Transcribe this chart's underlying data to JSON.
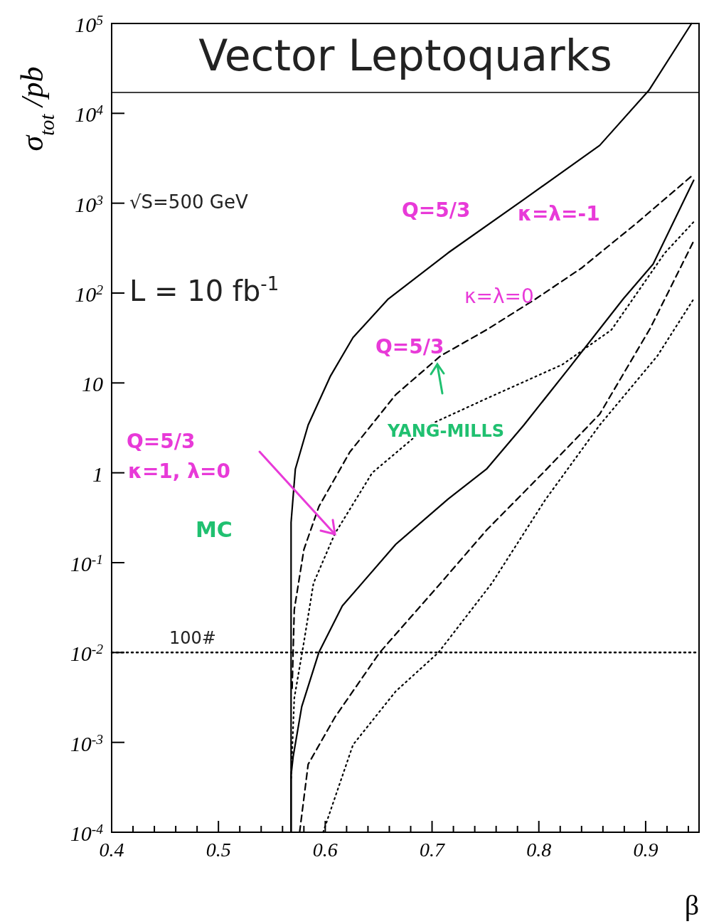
{
  "chart_data": {
    "type": "line",
    "title": "Vector Leptoquarks",
    "xlabel": "β",
    "ylabel": "σ$_{tot}$ /pb",
    "log": "y",
    "xlim": [
      0.4,
      0.95
    ],
    "ylim": [
      0.0001,
      100000
    ],
    "xticks": [
      0.4,
      {
        "value": 0.42,
        "label": null
      },
      {
        "value": 0.44,
        "label": null
      },
      {
        "value": 0.46,
        "label": null
      },
      {
        "value": 0.48,
        "label": null
      },
      0.5,
      {
        "value": 0.52,
        "label": null
      },
      {
        "value": 0.54,
        "label": null
      },
      {
        "value": 0.56,
        "label": null
      },
      {
        "value": 0.58,
        "label": null
      },
      0.6,
      {
        "value": 0.62,
        "label": null
      },
      {
        "value": 0.64,
        "label": null
      },
      {
        "value": 0.66,
        "label": null
      },
      {
        "value": 0.68,
        "label": null
      },
      0.7,
      {
        "value": 0.72,
        "label": null
      },
      {
        "value": 0.74,
        "label": null
      },
      {
        "value": 0.76,
        "label": null
      },
      {
        "value": 0.78,
        "label": null
      },
      0.8,
      {
        "value": 0.82,
        "label": null
      },
      {
        "value": 0.84,
        "label": null
      },
      {
        "value": 0.86,
        "label": null
      },
      {
        "value": 0.88,
        "label": null
      },
      0.9,
      {
        "value": 0.92,
        "label": null
      },
      {
        "value": 0.94,
        "label": null
      }
    ],
    "yticks": [
      {
        "value": 0.0001,
        "label": "10$^{-4}$"
      },
      {
        "value": 0.001,
        "label": "10$^{-3}$"
      },
      {
        "value": 0.01,
        "label": "10$^{-2}$"
      },
      {
        "value": 0.1,
        "label": "10$^{-1}$"
      },
      1,
      10,
      {
        "value": 100,
        "label": "10$^{2}$"
      },
      {
        "value": 1000,
        "label": "10$^{3}$"
      },
      {
        "value": 10000,
        "label": "10$^{4}$"
      },
      {
        "value": 100000,
        "label": "10$^{5}$"
      }
    ],
    "series": [
      {
        "color": "#000000",
        "line_style": "solid",
        "x": [
          0.568,
          0.568,
          0.572,
          0.584,
          0.605,
          0.626,
          0.659,
          0.715,
          0.786,
          0.857,
          0.903,
          0.943
        ],
        "values": [
          0.0001,
          0.28,
          1.1,
          3.4,
          12,
          32,
          86,
          280,
          1100,
          4400,
          18000,
          100000
        ]
      },
      {
        "color": "#000000",
        "line_style": "dashed",
        "x": [
          0.569,
          0.571,
          0.58,
          0.594,
          0.623,
          0.666,
          0.708,
          0.751,
          0.797,
          0.84,
          0.893,
          0.945
        ],
        "values": [
          0.004,
          0.03,
          0.14,
          0.42,
          1.7,
          7.4,
          20,
          39,
          86,
          190,
          620,
          2100
        ]
      },
      {
        "color": "#000000",
        "line_style": "dotted",
        "x": [
          0.568,
          0.571,
          0.58,
          0.589,
          0.609,
          0.644,
          0.697,
          0.751,
          0.822,
          0.868,
          0.918,
          0.945
        ],
        "values": [
          0.0004,
          0.0031,
          0.013,
          0.059,
          0.21,
          1.0,
          3.4,
          6.7,
          16,
          39,
          280,
          620
        ]
      },
      {
        "color": "#000000",
        "line_style": "solid",
        "x": [
          0.568,
          0.568,
          0.57,
          0.578,
          0.594,
          0.616,
          0.666,
          0.715,
          0.751,
          0.786,
          0.829,
          0.879,
          0.907,
          0.945
        ],
        "values": [
          0.0001,
          0.00043,
          0.0007,
          0.0025,
          0.01,
          0.033,
          0.16,
          0.51,
          1.1,
          3.4,
          15,
          86,
          210,
          1800
        ]
      },
      {
        "color": "#000000",
        "line_style": "dashed",
        "x": [
          0.576,
          0.584,
          0.609,
          0.651,
          0.708,
          0.751,
          0.804,
          0.857,
          0.904,
          0.918,
          0.945
        ],
        "values": [
          0.0001,
          0.00057,
          0.0019,
          0.01,
          0.059,
          0.23,
          1.0,
          4.5,
          40,
          86,
          380
        ]
      },
      {
        "color": "#000000",
        "line_style": "dotted",
        "x": [
          0.598,
          0.626,
          0.666,
          0.706,
          0.756,
          0.806,
          0.857,
          0.911,
          0.945
        ],
        "values": [
          0.0001,
          0.00094,
          0.0037,
          0.01,
          0.059,
          0.5,
          3.4,
          20,
          86
        ]
      }
    ],
    "ref_lines": [
      {
        "axis": "y",
        "value": 0.01,
        "color": "#000000",
        "line_style": "dotted"
      }
    ],
    "annotations": [
      "√S=500 GeV",
      "L = 10 fb$^{-1}$",
      "100#",
      "Q=5/3",
      "κ=λ=-1",
      "κ=λ=0",
      "Q=5/3",
      "YANG-MILLS",
      "Q=5/3",
      "κ=1, λ=0",
      "MC"
    ]
  }
}
